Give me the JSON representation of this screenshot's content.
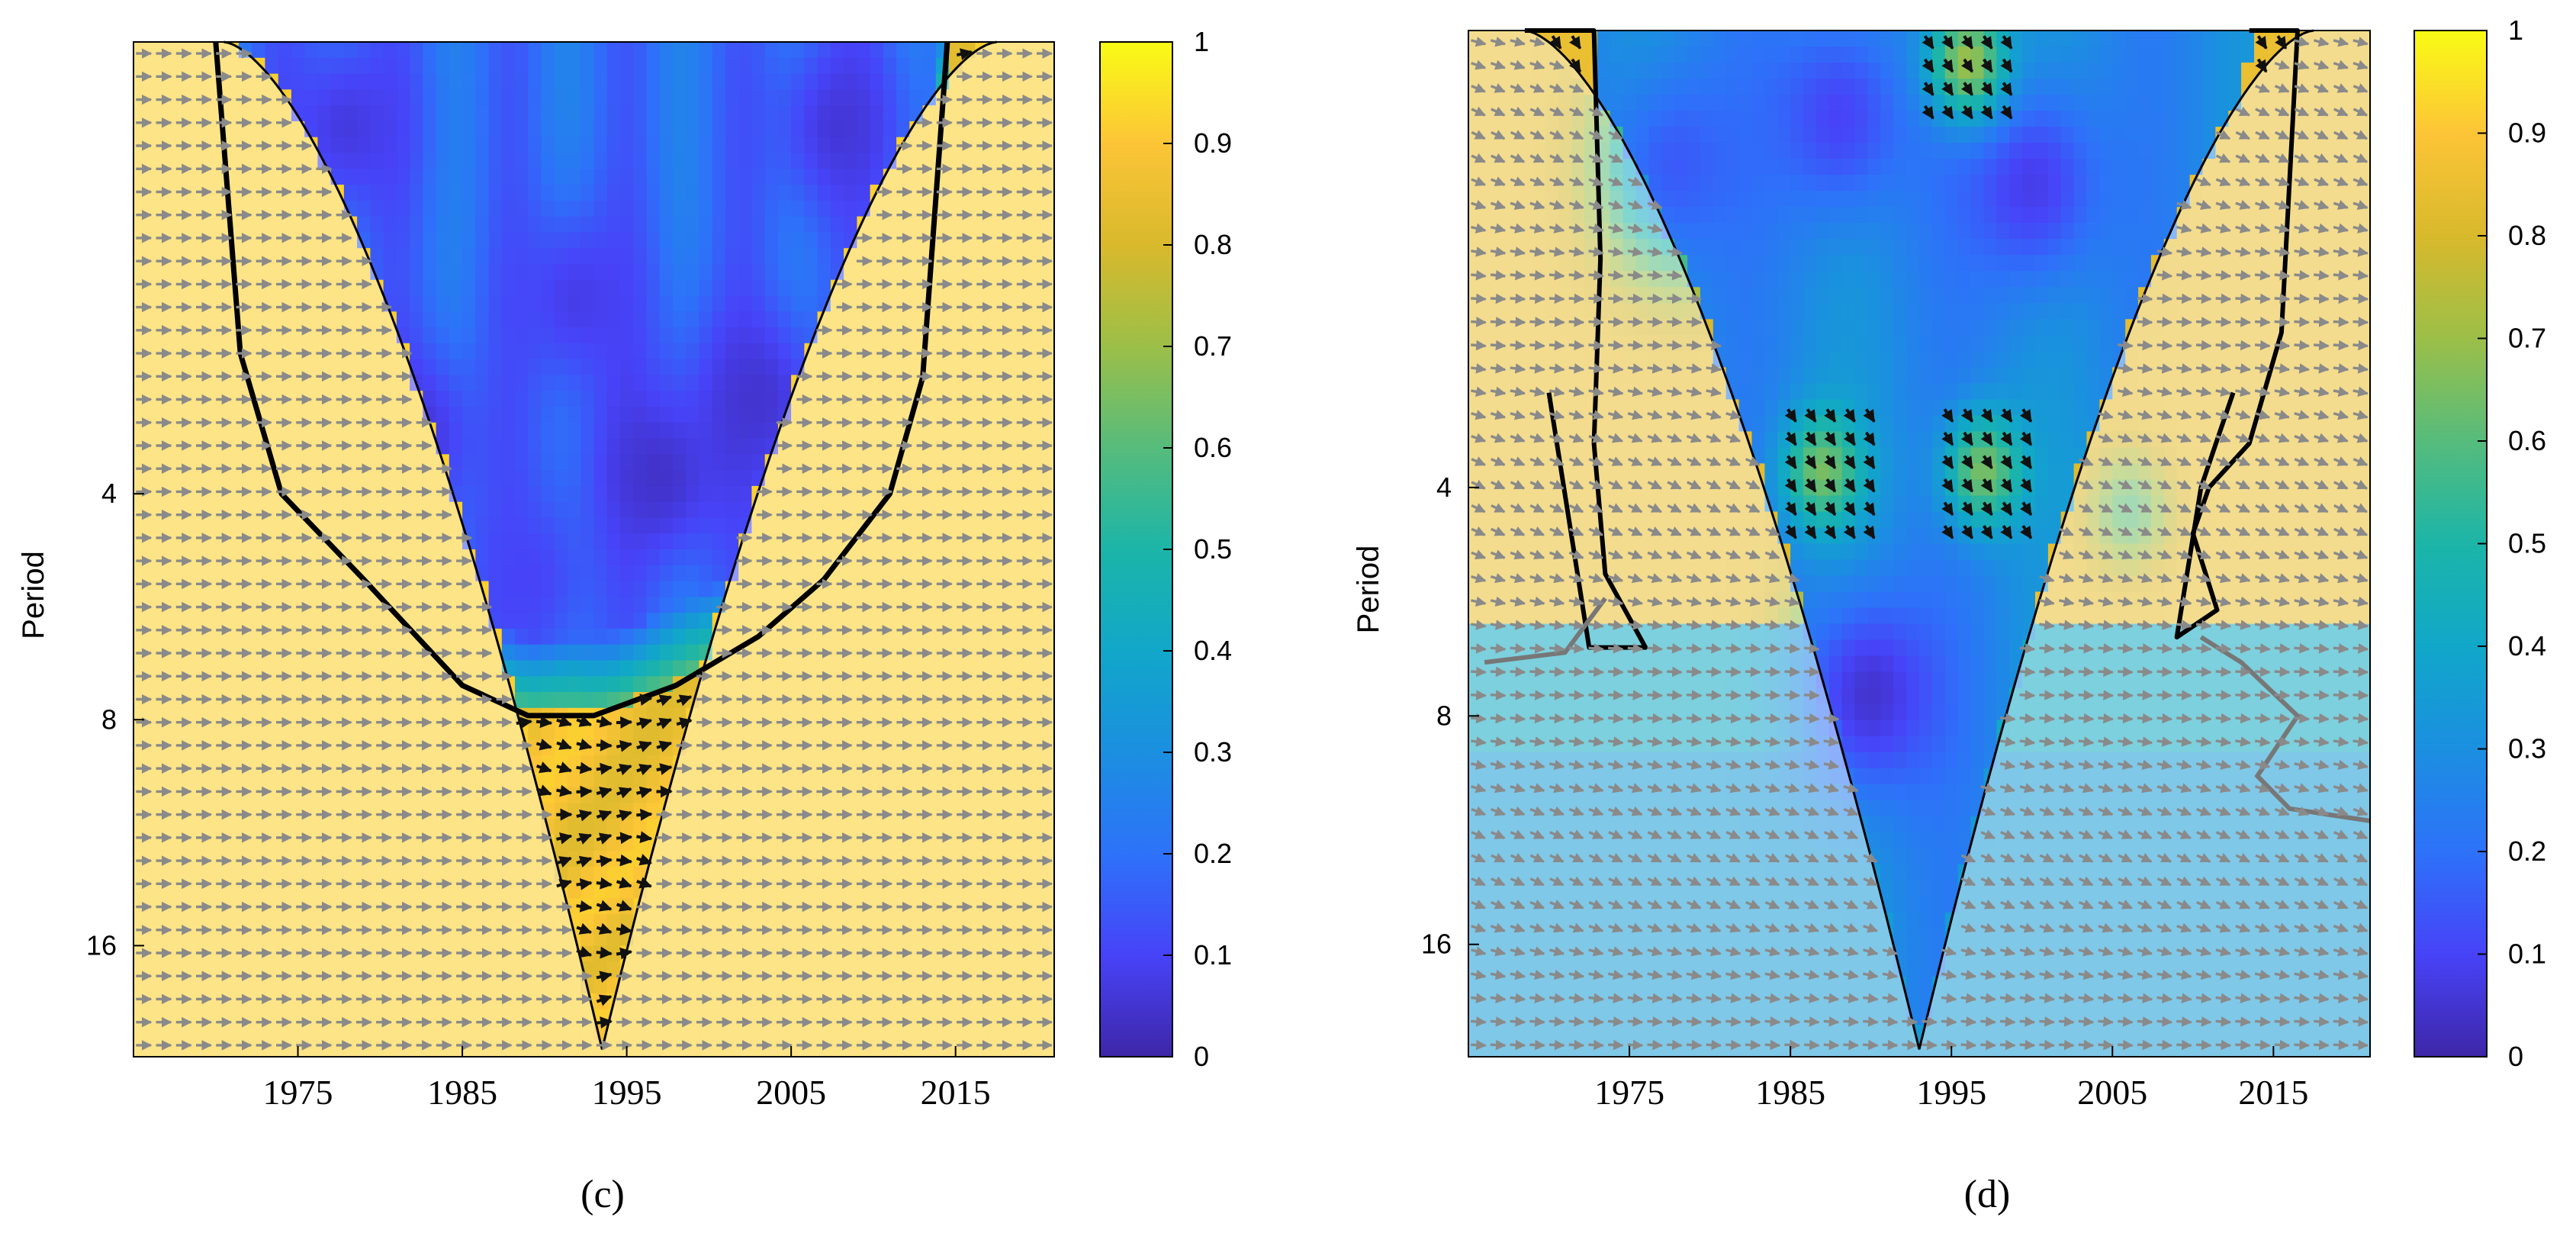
{
  "chart_data": [
    {
      "panel_label": "(c)",
      "type": "heatmap",
      "subtype": "wavelet-coherence",
      "ylabel": "Period",
      "x_ticks": [
        "1975",
        "1985",
        "1995",
        "2005",
        "2015"
      ],
      "x_tick_values": [
        1975,
        1985,
        1995,
        2005,
        2015
      ],
      "xlim": [
        1965,
        2021
      ],
      "y_scale": "log2",
      "y_ticks": [
        "4",
        "8",
        "16"
      ],
      "y_tick_values": [
        4,
        8,
        16
      ],
      "ylim": [
        1,
        22.5
      ],
      "colorbar": {
        "min": 0,
        "max": 1,
        "ticks": [
          "0",
          "0.1",
          "0.2",
          "0.3",
          "0.4",
          "0.5",
          "0.6",
          "0.7",
          "0.8",
          "0.9",
          "1"
        ],
        "colors": [
          "#3e26a8",
          "#4743f8",
          "#2d72f9",
          "#1b8fe0",
          "#11a7c9",
          "#1cb5a8",
          "#56bc7c",
          "#9cbf48",
          "#d9b92c",
          "#fcc537",
          "#f9fb15"
        ]
      },
      "cone_of_influence": {
        "left_x": 1970.5,
        "apex_x": 1993.5,
        "apex_period": 22,
        "right_x": 2017.5
      },
      "significance_contour": [
        [
          1970,
          1.0
        ],
        [
          1971.5,
          2.6
        ],
        [
          1974,
          4.0
        ],
        [
          1979,
          5.2
        ],
        [
          1981,
          5.8
        ],
        [
          1985,
          7.2
        ],
        [
          1989,
          7.9
        ],
        [
          1993,
          7.9
        ],
        [
          1998,
          7.2
        ],
        [
          2003,
          6.2
        ],
        [
          2007,
          5.2
        ],
        [
          2011,
          4.0
        ],
        [
          2013,
          2.8
        ],
        [
          2014.5,
          1.0
        ]
      ],
      "regions": {
        "background": 0.92,
        "cone_outside_contour": 0.87,
        "cone_inside_contour_base": 0.2,
        "low_blobs": [
          {
            "x": 1982,
            "p": 3.4,
            "v": 0.05
          },
          {
            "x": 1992,
            "p": 2.2,
            "v": 0.08
          },
          {
            "x": 1997,
            "p": 3.8,
            "v": 0.04
          },
          {
            "x": 2003,
            "p": 3.0,
            "v": 0.05
          },
          {
            "x": 1989,
            "p": 5.2,
            "v": 0.1
          },
          {
            "x": 1978,
            "p": 1.3,
            "v": 0.07
          },
          {
            "x": 2008,
            "p": 1.3,
            "v": 0.06
          }
        ]
      }
    },
    {
      "panel_label": "(d)",
      "type": "heatmap",
      "subtype": "wavelet-coherence",
      "ylabel": "Period",
      "x_ticks": [
        "1975",
        "1985",
        "1995",
        "2005",
        "2015"
      ],
      "x_tick_values": [
        1975,
        1985,
        1995,
        2005,
        2015
      ],
      "xlim": [
        1965,
        2021
      ],
      "y_scale": "log2",
      "y_ticks": [
        "4",
        "8",
        "16"
      ],
      "y_tick_values": [
        4,
        8,
        16
      ],
      "ylim": [
        1,
        22.5
      ],
      "colorbar": {
        "min": 0,
        "max": 1,
        "ticks": [
          "0",
          "0.1",
          "0.2",
          "0.3",
          "0.4",
          "0.5",
          "0.6",
          "0.7",
          "0.8",
          "0.9",
          "1"
        ],
        "colors": [
          "#3e26a8",
          "#4743f8",
          "#2d72f9",
          "#1b8fe0",
          "#11a7c9",
          "#1cb5a8",
          "#56bc7c",
          "#9cbf48",
          "#d9b92c",
          "#fcc537",
          "#f9fb15"
        ]
      },
      "cone_of_influence": {
        "left_x": 1968.5,
        "apex_x": 1993,
        "apex_period": 22,
        "right_x": 2017.5
      },
      "significant_regions": [
        [
          [
            1968.5,
            1.0
          ],
          [
            1972.8,
            1.0
          ],
          [
            1973.2,
            2.0
          ],
          [
            1972.8,
            3.5
          ],
          [
            1973.5,
            5.2
          ],
          [
            1976,
            6.5
          ],
          [
            1972.5,
            6.5
          ],
          [
            1970,
            3.0
          ]
        ],
        [
          [
            2013.5,
            1.0
          ],
          [
            2016.5,
            1.0
          ],
          [
            2015.5,
            2.5
          ],
          [
            2013.5,
            3.5
          ],
          [
            2011,
            4.0
          ],
          [
            2010,
            4.6
          ],
          [
            2011.5,
            5.8
          ],
          [
            2009,
            6.3
          ],
          [
            2010.5,
            4.0
          ],
          [
            2012.5,
            3.0
          ]
        ]
      ],
      "regions": {
        "background": 0.35,
        "cone_base": 0.28,
        "low_blobs": [
          {
            "x": 1990,
            "p": 7.5,
            "v": 0.05
          },
          {
            "x": 1988,
            "p": 1.3,
            "v": 0.1
          },
          {
            "x": 2000,
            "p": 1.6,
            "v": 0.08
          },
          {
            "x": 1978,
            "p": 1.5,
            "v": 0.15
          }
        ],
        "high_spots": [
          {
            "x": 1987,
            "p": 3.8,
            "v": 0.65
          },
          {
            "x": 1997,
            "p": 3.8,
            "v": 0.65
          },
          {
            "x": 2006,
            "p": 4.3,
            "v": 0.6
          },
          {
            "x": 1996,
            "p": 1.1,
            "v": 0.7
          }
        ]
      }
    }
  ]
}
